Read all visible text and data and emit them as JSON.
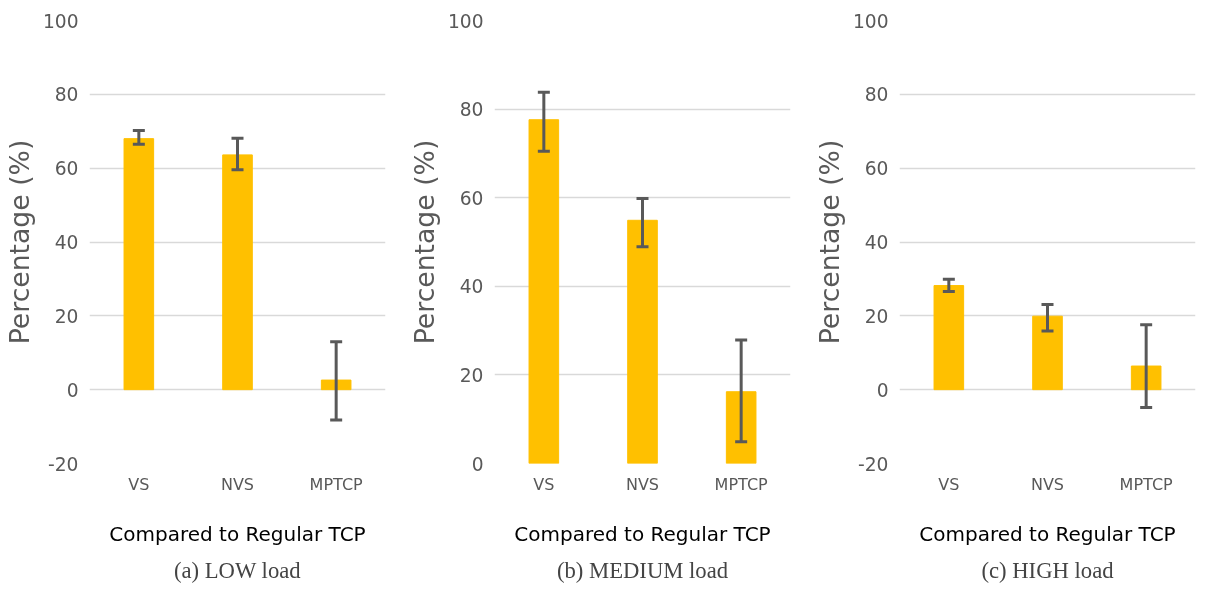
{
  "chart_data": [
    {
      "type": "bar",
      "title": "(a) LOW load",
      "xlabel": "Compared to Regular TCP",
      "ylabel": "Percentage (%)",
      "categories": [
        "VS",
        "NVS",
        "MPTCP"
      ],
      "values": [
        68,
        63.6,
        2.6
      ],
      "errors": [
        [
          66.5,
          70.2
        ],
        [
          59.6,
          68.1
        ],
        [
          -8.2,
          13
        ]
      ],
      "color": "#ffc000",
      "ylim": [
        -20,
        100
      ],
      "yticks": [
        -20,
        0,
        20,
        40,
        60,
        80,
        100
      ],
      "grid": "y"
    },
    {
      "type": "bar",
      "title": "(b) MEDIUM load",
      "xlabel": "Compared to Regular TCP",
      "ylabel": "Percentage (%)",
      "categories": [
        "VS",
        "NVS",
        "MPTCP"
      ],
      "values": [
        77.6,
        54.9,
        16.2
      ],
      "errors": [
        [
          70.5,
          83.8
        ],
        [
          48.9,
          59.8
        ],
        [
          4.9,
          27.9
        ]
      ],
      "color": "#ffc000",
      "ylim": [
        0,
        100
      ],
      "yticks": [
        0,
        20,
        40,
        60,
        80,
        100
      ],
      "grid": "y"
    },
    {
      "type": "bar",
      "title": "(c) HIGH load",
      "xlabel": "Compared to Regular TCP",
      "ylabel": "Percentage (%)",
      "categories": [
        "VS",
        "NVS",
        "MPTCP"
      ],
      "values": [
        28.2,
        19.9,
        6.4
      ],
      "errors": [
        [
          26.6,
          29.9
        ],
        [
          15.9,
          23.1
        ],
        [
          -4.8,
          17.6
        ]
      ],
      "color": "#ffc000",
      "ylim": [
        -20,
        100
      ],
      "yticks": [
        -20,
        0,
        20,
        40,
        60,
        80,
        100
      ],
      "grid": "y"
    }
  ]
}
